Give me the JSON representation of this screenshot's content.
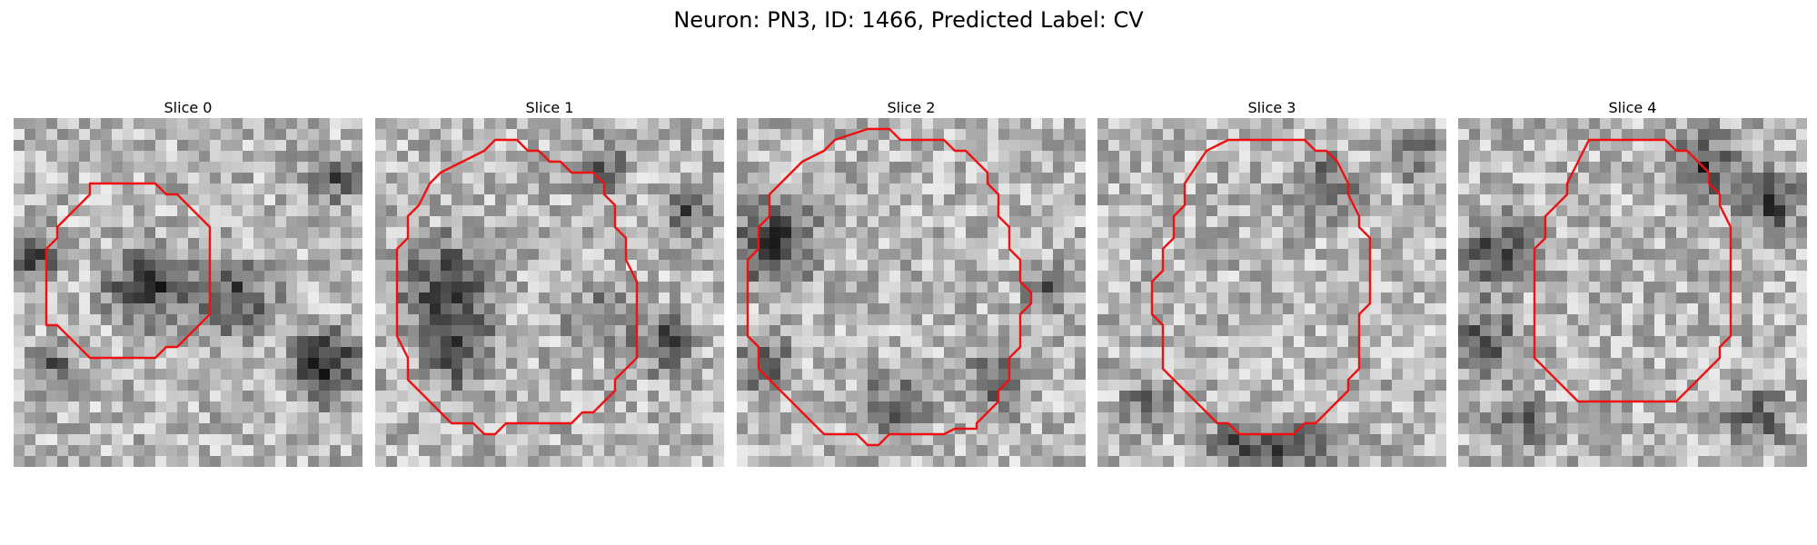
{
  "figure": {
    "title": "Neuron: PN3, ID: 1466, Predicted Label: CV"
  },
  "outline_color": "#ee1111",
  "panels": [
    {
      "title": "Slice 0",
      "seed": 11,
      "dark_region": "lower-center",
      "roi_shape": "octagon-small"
    },
    {
      "title": "Slice 1",
      "seed": 23,
      "dark_region": "left",
      "roi_shape": "octagon-irregular"
    },
    {
      "title": "Slice 2",
      "seed": 37,
      "dark_region": "left-edge",
      "roi_shape": "octagon-large"
    },
    {
      "title": "Slice 3",
      "seed": 51,
      "dark_region": "bottom",
      "roi_shape": "octagon-large"
    },
    {
      "title": "Slice 4",
      "seed": 67,
      "dark_region": "ring",
      "roi_shape": "octagon-large"
    }
  ]
}
